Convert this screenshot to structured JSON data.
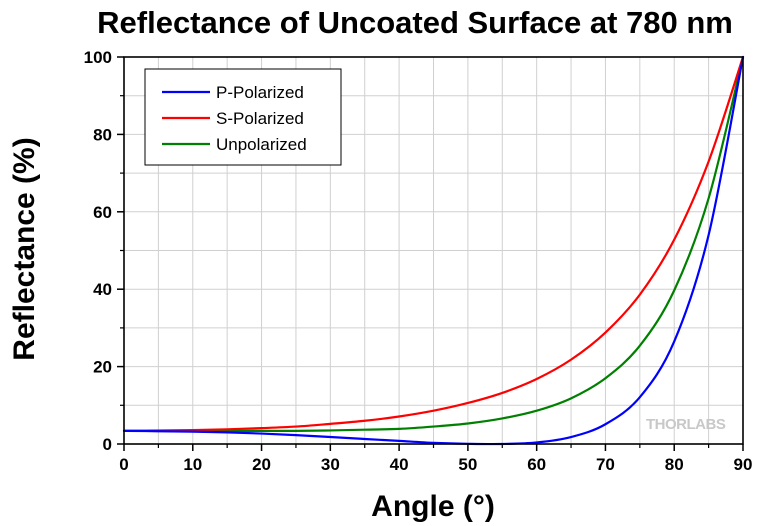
{
  "chart_data": {
    "type": "line",
    "title": "Reflectance of Uncoated Surface at 780 nm",
    "xlabel": "Angle (°)",
    "ylabel": "Reflectance (%)",
    "xlim": [
      0,
      90
    ],
    "ylim": [
      0,
      100
    ],
    "x_ticks": [
      "0",
      "10",
      "20",
      "30",
      "40",
      "50",
      "60",
      "70",
      "80",
      "90"
    ],
    "y_ticks": [
      "0",
      "20",
      "40",
      "60",
      "80",
      "100"
    ],
    "grid": true,
    "legend_position": "top-left",
    "watermark": "THORLABS",
    "x": [
      0,
      5,
      10,
      15,
      20,
      25,
      30,
      35,
      40,
      45,
      50,
      55,
      60,
      65,
      70,
      75,
      80,
      85,
      90
    ],
    "series": [
      {
        "name": "P-Polarized",
        "color": "#0000ff",
        "values": [
          3.4,
          3.3,
          3.2,
          3.0,
          2.7,
          2.3,
          1.8,
          1.3,
          0.8,
          0.3,
          0.05,
          0.0,
          0.4,
          1.8,
          5.1,
          12.1,
          26.5,
          54.0,
          100
        ]
      },
      {
        "name": "S-Polarized",
        "color": "#ff0000",
        "values": [
          3.4,
          3.5,
          3.6,
          3.8,
          4.1,
          4.5,
          5.2,
          6.0,
          7.1,
          8.6,
          10.6,
          13.2,
          16.8,
          21.8,
          28.8,
          38.6,
          52.8,
          73.0,
          100
        ]
      },
      {
        "name": "Unpolarized",
        "color": "#008000",
        "values": [
          3.4,
          3.4,
          3.4,
          3.4,
          3.4,
          3.4,
          3.5,
          3.7,
          3.9,
          4.5,
          5.3,
          6.6,
          8.6,
          11.8,
          17.0,
          25.4,
          39.7,
          63.5,
          100
        ]
      }
    ]
  }
}
